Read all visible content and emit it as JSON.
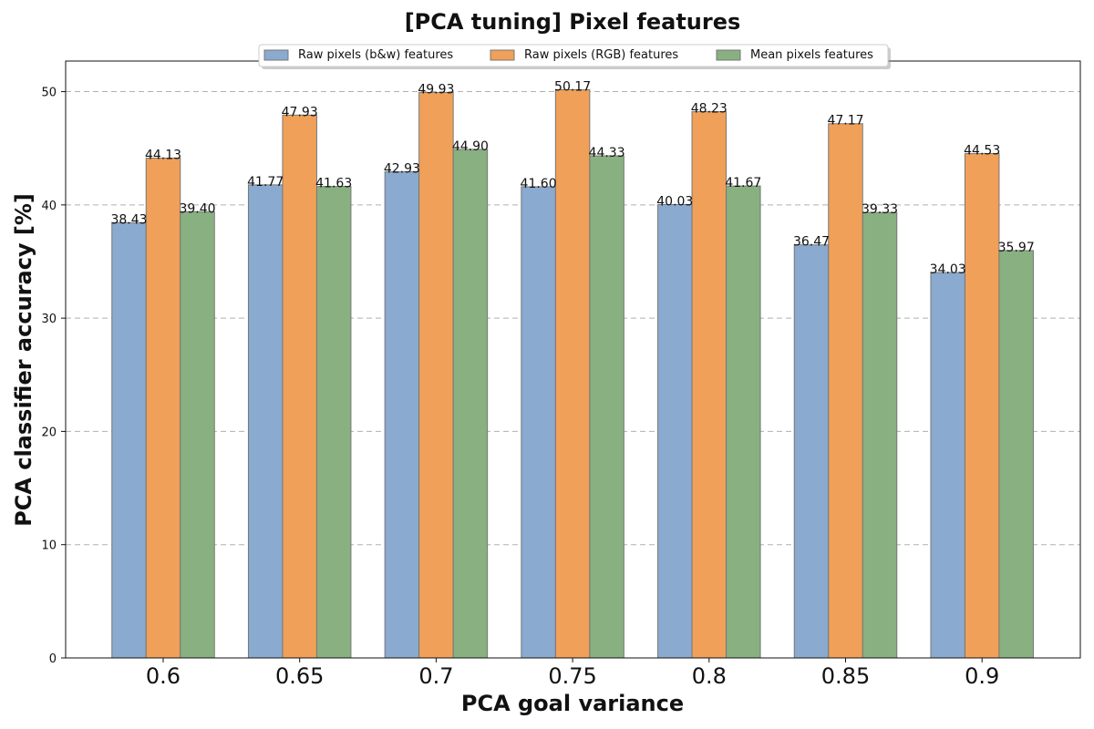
{
  "chart_data": {
    "type": "bar",
    "title": "[PCA tuning] Pixel features",
    "xlabel": "PCA goal variance",
    "ylabel": "PCA classifier accuracy [%]",
    "categories": [
      "0.6",
      "0.65",
      "0.7",
      "0.75",
      "0.8",
      "0.85",
      "0.9"
    ],
    "ylim": [
      0,
      52.7
    ],
    "yticks": [
      0,
      10,
      20,
      30,
      40,
      50
    ],
    "grid": true,
    "legend_position": "top-center",
    "series": [
      {
        "name": "Raw pixels (b&w) features",
        "color": "#8aaacf",
        "values": [
          38.43,
          41.77,
          42.93,
          41.6,
          40.03,
          36.47,
          34.03
        ],
        "labels": [
          "38.43",
          "41.77",
          "42.93",
          "41.60",
          "40.03",
          "36.47",
          "34.03"
        ]
      },
      {
        "name": "Raw pixels (RGB) features",
        "color": "#f0a058",
        "values": [
          44.13,
          47.93,
          49.93,
          50.17,
          48.23,
          47.17,
          44.53
        ],
        "labels": [
          "44.13",
          "47.93",
          "49.93",
          "50.17",
          "48.23",
          "47.17",
          "44.53"
        ]
      },
      {
        "name": "Mean pixels features",
        "color": "#88b080",
        "values": [
          39.4,
          41.63,
          44.9,
          44.33,
          41.67,
          39.33,
          35.97
        ],
        "labels": [
          "39.40",
          "41.63",
          "44.90",
          "44.33",
          "41.67",
          "39.33",
          "35.97"
        ]
      }
    ]
  }
}
